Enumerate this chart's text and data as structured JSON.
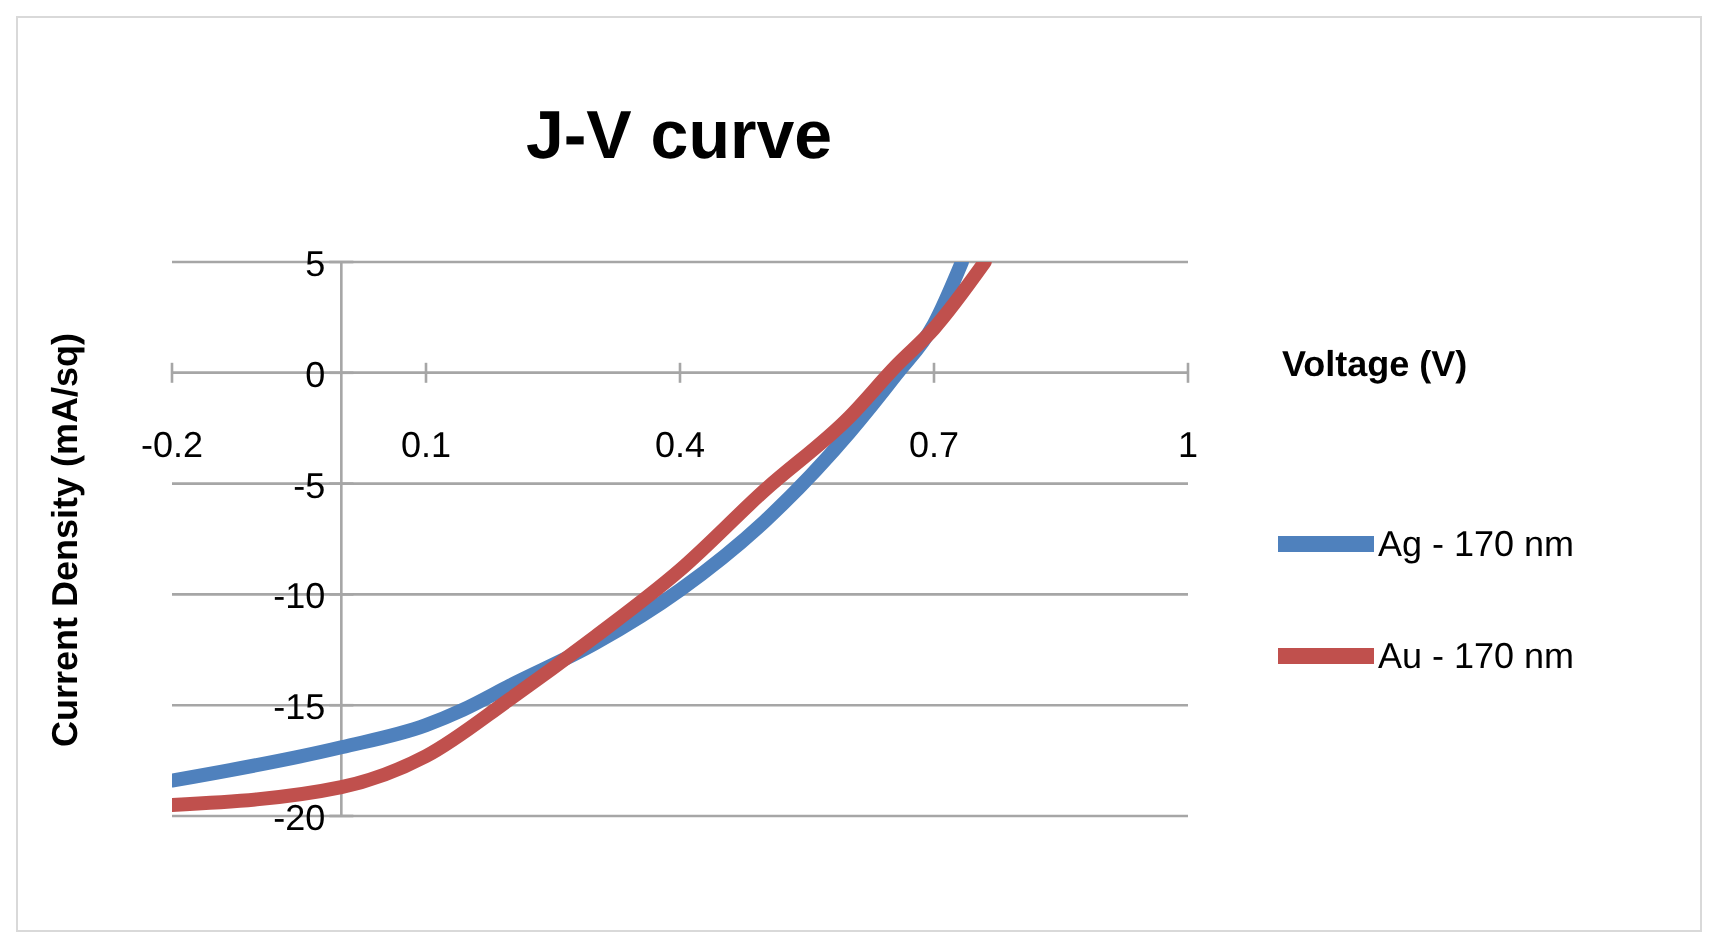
{
  "chart_data": {
    "type": "line",
    "title": "J-V curve",
    "xlabel": "Voltage (V)",
    "ylabel": "Current Density (mA/sq)",
    "xlim": [
      -0.2,
      1
    ],
    "xticks": [
      {
        "value": -0.2,
        "label": "-0.2"
      },
      {
        "value": 0.1,
        "label": "0.1"
      },
      {
        "value": 0.4,
        "label": "0.4"
      },
      {
        "value": 0.7,
        "label": "0.7"
      },
      1
    ],
    "ylim": [
      -20,
      5
    ],
    "yticks": [
      -20,
      -15,
      -10,
      -5,
      0,
      5
    ],
    "grid": "y",
    "legend": "right",
    "marker": "none",
    "line_style": "solid",
    "series": [
      {
        "name": "Ag - 170 nm",
        "color": "#4f81bd",
        "x": [
          -0.2,
          0,
          0.1,
          0.144,
          0.2,
          0.3,
          0.4,
          0.5,
          0.6,
          0.655,
          0.7,
          0.733
        ],
        "values": [
          -18.4,
          -16.9,
          -15.9,
          -15.2,
          -14.1,
          -12.2,
          -9.8,
          -6.7,
          -2.7,
          -0.1,
          2.2,
          5
        ]
      },
      {
        "name": "Au - 170 nm",
        "color": "#c0504d",
        "x": [
          -0.2,
          0,
          0.1,
          0.2,
          0.3,
          0.4,
          0.5,
          0.6,
          0.655,
          0.7,
          0.76
        ],
        "values": [
          -19.5,
          -18.7,
          -17.3,
          -14.7,
          -11.9,
          -8.9,
          -5.3,
          -2.0,
          0.3,
          2.0,
          5
        ]
      }
    ]
  }
}
